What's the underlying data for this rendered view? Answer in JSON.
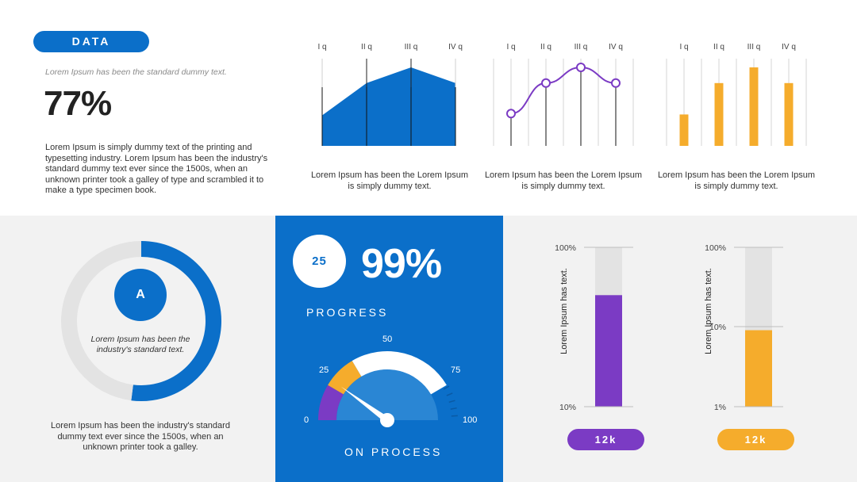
{
  "header": {
    "pill_label": "DATA",
    "subtitle": "Lorem Ipsum has been the standard dummy text.",
    "big_percent": "77%",
    "paragraph": "Lorem Ipsum is simply dummy text of the printing and typesetting industry. Lorem Ipsum has been the industry's standard dummy text ever since the 1500s, when an unknown printer took a galley of type and scrambled it to make a type specimen book."
  },
  "captions": {
    "area": "Lorem Ipsum has been the Lorem Ipsum is simply dummy text.",
    "line": "Lorem Ipsum has been the Lorem Ipsum is simply dummy text.",
    "bar": "Lorem Ipsum has been the Lorem Ipsum is simply dummy text."
  },
  "donut": {
    "center_label": "A",
    "text": "Lorem Ipsum has been the industry's standard text.",
    "bottom_text": "Lorem Ipsum has been the industry's standard dummy text ever since the 1500s, when an unknown printer took a galley."
  },
  "progress": {
    "badge": "25",
    "percent": "99%",
    "label": "PROGRESS",
    "footer": "ON PROCESS",
    "ticks": [
      "0",
      "25",
      "50",
      "75",
      "100"
    ]
  },
  "thermometers": {
    "left": {
      "pill": "12k",
      "ticks": [
        "100%",
        "10%"
      ],
      "ylabel": "Lorem Ipsum has text."
    },
    "right": {
      "pill": "12k",
      "ticks": [
        "100%",
        "10%",
        "1%"
      ],
      "ylabel": "Lorem Ipsum has text."
    }
  },
  "colors": {
    "blue": "#0b6fc9",
    "purple": "#7b3bc4",
    "orange": "#f5ac2c",
    "light_gray": "#e3e3e3"
  },
  "chart_data": [
    {
      "type": "area",
      "categories": [
        "I q",
        "II q",
        "III q",
        "IV q"
      ],
      "values": [
        35,
        72,
        90,
        72
      ],
      "ylim": [
        0,
        100
      ]
    },
    {
      "type": "line",
      "categories": [
        "I q",
        "II q",
        "III q",
        "IV q"
      ],
      "values": [
        37,
        72,
        90,
        72
      ],
      "ylim": [
        0,
        100
      ]
    },
    {
      "type": "bar",
      "categories": [
        "I q",
        "II q",
        "III q",
        "IV q"
      ],
      "values": [
        36,
        72,
        90,
        72
      ],
      "ylim": [
        0,
        100
      ]
    },
    {
      "type": "pie",
      "values": [
        52,
        48
      ],
      "colors": [
        "#0b6fc9",
        "#e3e3e3"
      ]
    },
    {
      "type": "gauge",
      "range": [
        0,
        100
      ],
      "segments": [
        {
          "from": 0,
          "to": 17,
          "color": "#7b3bc4"
        },
        {
          "from": 17,
          "to": 33,
          "color": "#f5ac2c"
        },
        {
          "from": 33,
          "to": 83,
          "color": "#ffffff"
        }
      ],
      "needle": 20
    },
    {
      "type": "bar",
      "series": [
        {
          "values": [
            0.7
          ],
          "color": "#7b3bc4"
        },
        {
          "values": [
            0.48
          ],
          "color": "#f5ac2c"
        }
      ]
    }
  ]
}
